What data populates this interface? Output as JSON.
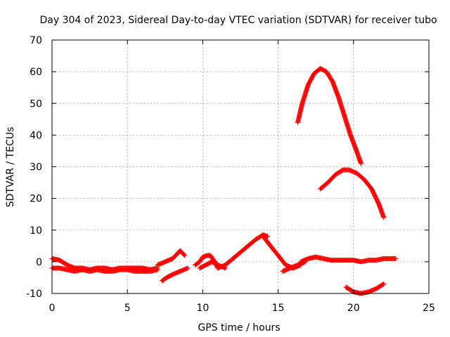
{
  "chart_data": {
    "type": "scatter",
    "title": "Day 304 of 2023, Sidereal Day-to-day VTEC variation (SDTVAR) for receiver tubo",
    "xlabel": "GPS time / hours",
    "ylabel": "SDTVAR / TECUs",
    "xlim": [
      0,
      25
    ],
    "ylim": [
      -10,
      70
    ],
    "xticks": [
      "0",
      "5",
      "10",
      "15",
      "20",
      "25"
    ],
    "yticks": [
      "-10",
      "0",
      "10",
      "20",
      "30",
      "40",
      "50",
      "60",
      "70"
    ],
    "xtick_values": [
      0,
      5,
      10,
      15,
      20,
      25
    ],
    "ytick_values": [
      -10,
      0,
      10,
      20,
      30,
      40,
      50,
      60,
      70
    ],
    "grid": true,
    "marker_color": "#ff0000",
    "series": [
      {
        "name": "main-band-upper",
        "x": [
          0,
          0.5,
          1,
          1.5,
          2,
          2.5,
          3,
          3.5,
          4,
          4.5,
          5,
          5.5,
          6,
          6.5,
          7
        ],
        "y": [
          1,
          0.5,
          -1,
          -2,
          -2,
          -2.5,
          -2,
          -2,
          -2.5,
          -2,
          -2,
          -2,
          -2,
          -2.5,
          -2
        ]
      },
      {
        "name": "main-band-lower",
        "x": [
          0,
          0.5,
          1,
          1.5,
          2,
          2.5,
          3,
          3.5,
          4,
          4.5,
          5,
          5.5,
          6,
          6.5,
          7
        ],
        "y": [
          -2,
          -2,
          -2.5,
          -3,
          -2.5,
          -3,
          -2.5,
          -3,
          -3,
          -2.5,
          -2.5,
          -3,
          -3,
          -3,
          -2.5
        ]
      },
      {
        "name": "segment-7-8.5",
        "x": [
          7,
          7.5,
          8,
          8.3,
          8.5,
          8.8
        ],
        "y": [
          -1,
          0,
          1,
          2.5,
          3.5,
          2
        ]
      },
      {
        "name": "segment-7.3-9",
        "x": [
          7.3,
          7.6,
          8,
          8.5,
          9
        ],
        "y": [
          -6,
          -5,
          -4,
          -3,
          -2
        ]
      },
      {
        "name": "segment-9.5-11",
        "x": [
          9.5,
          9.8,
          10,
          10.3,
          10.5,
          10.8,
          11
        ],
        "y": [
          -1,
          0,
          1.5,
          2,
          2,
          0,
          -2
        ]
      },
      {
        "name": "segment-9.8-11.5",
        "x": [
          9.8,
          10.2,
          10.6,
          11,
          11.5
        ],
        "y": [
          -2,
          -1,
          0,
          -1,
          -2
        ]
      },
      {
        "name": "rise-11.5-14",
        "x": [
          11,
          11.5,
          12,
          12.5,
          13,
          13.5,
          14,
          14.3
        ],
        "y": [
          -2,
          -1,
          1,
          3,
          5,
          7,
          8.5,
          8
        ]
      },
      {
        "name": "decline-14-16",
        "x": [
          14,
          14.5,
          15,
          15.5,
          16,
          16.5
        ],
        "y": [
          8,
          5,
          2,
          -1,
          -2,
          -1
        ]
      },
      {
        "name": "low-band-15.5-17",
        "x": [
          15.3,
          15.8,
          16.3,
          16.8
        ],
        "y": [
          -3,
          -2,
          -1,
          0
        ]
      },
      {
        "name": "bump-16.5-23",
        "x": [
          16.5,
          17,
          17.5,
          18,
          18.5,
          19,
          19.5,
          20,
          20.5,
          21,
          21.5,
          22,
          22.5,
          22.8
        ],
        "y": [
          0,
          1,
          1.5,
          1,
          0.5,
          0.5,
          0.5,
          0.5,
          0,
          0.5,
          0.5,
          1,
          1,
          1
        ]
      },
      {
        "name": "arc-16.3-20.5",
        "x": [
          16.3,
          16.6,
          17,
          17.4,
          17.8,
          18.2,
          18.6,
          19,
          19.4,
          19.8,
          20.2,
          20.5
        ],
        "y": [
          44,
          50,
          56,
          59.5,
          61,
          60,
          57,
          52,
          46,
          40,
          35,
          31
        ]
      },
      {
        "name": "arc-17.8-22",
        "x": [
          17.8,
          18.3,
          18.8,
          19.3,
          19.7,
          20.2,
          20.7,
          21.2,
          21.7,
          22
        ],
        "y": [
          23,
          25,
          27.5,
          29,
          29,
          28,
          26,
          23,
          18,
          14
        ]
      },
      {
        "name": "dip-19.5-22",
        "x": [
          19.5,
          20,
          20.5,
          21,
          21.5,
          22
        ],
        "y": [
          -8,
          -9.5,
          -10,
          -9.5,
          -8.5,
          -7
        ]
      }
    ]
  }
}
